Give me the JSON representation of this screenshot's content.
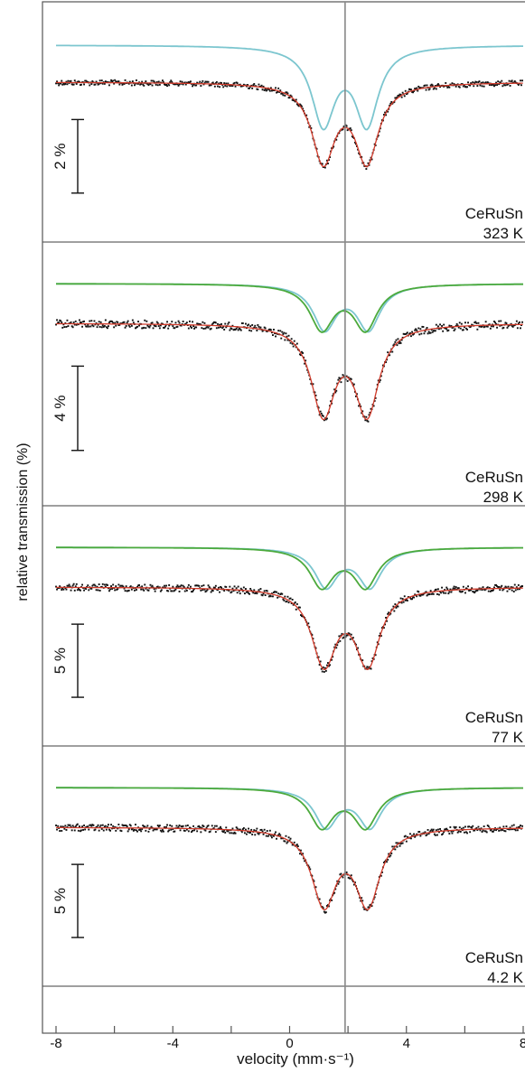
{
  "chart_data": {
    "type": "line",
    "xlabel": "velocity (mm·s⁻¹)",
    "ylabel": "relative transmission (%)",
    "xlim": [
      -8,
      8
    ],
    "x_ticks": [
      "-8",
      "-4",
      "0",
      "4",
      "8"
    ],
    "x_minor_step": 2,
    "reference_line_x": 1.9,
    "colors": {
      "data": "#111111",
      "fit": "#d03a2a",
      "cyan": "#7cc6cf",
      "green": "#4caa3c",
      "axis": "#555555"
    },
    "panels": [
      {
        "compound": "CeRuSn",
        "temperature": "323 K",
        "scale_label": "2 %",
        "scale_percent": 2,
        "components": [
          {
            "center": 1.9,
            "split": 1.49,
            "depth": 4.2,
            "hwhm": 0.48,
            "share": 1.0,
            "color": "cyan"
          }
        ]
      },
      {
        "compound": "CeRuSn",
        "temperature": "298 K",
        "scale_label": "4 %",
        "scale_percent": 4,
        "components": [
          {
            "center": 1.95,
            "split": 1.5,
            "depth": 8.4,
            "hwhm": 0.48,
            "share": 0.5,
            "color": "cyan"
          },
          {
            "center": 1.85,
            "split": 1.5,
            "depth": 8.4,
            "hwhm": 0.5,
            "share": 0.5,
            "color": "green"
          }
        ]
      },
      {
        "compound": "CeRuSn",
        "temperature": "77 K",
        "scale_label": "5 %",
        "scale_percent": 5,
        "components": [
          {
            "center": 2.0,
            "split": 1.5,
            "depth": 10.5,
            "hwhm": 0.48,
            "share": 0.5,
            "color": "cyan"
          },
          {
            "center": 1.85,
            "split": 1.5,
            "depth": 10.5,
            "hwhm": 0.5,
            "share": 0.5,
            "color": "green"
          }
        ]
      },
      {
        "compound": "CeRuSn",
        "temperature": "4.2 K",
        "scale_label": "5 %",
        "scale_percent": 5,
        "components": [
          {
            "center": 2.0,
            "split": 1.5,
            "depth": 10.5,
            "hwhm": 0.48,
            "share": 0.5,
            "color": "cyan"
          },
          {
            "center": 1.85,
            "split": 1.5,
            "depth": 10.5,
            "hwhm": 0.5,
            "share": 0.5,
            "color": "green"
          }
        ]
      }
    ]
  }
}
